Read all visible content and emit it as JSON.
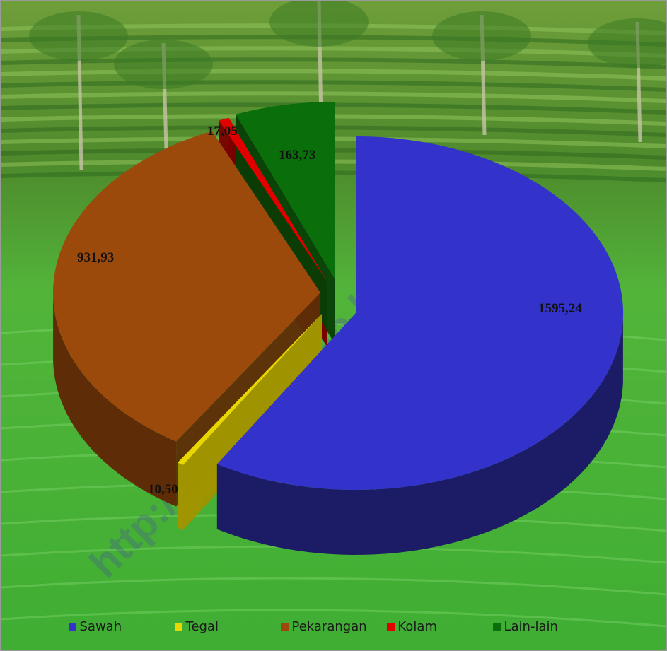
{
  "watermark": "http://tabalongkab.bps.go.id",
  "chart_data": {
    "type": "pie",
    "categories": [
      "Sawah",
      "Tegal",
      "Pekarangan",
      "Kolam",
      "Lain-lain"
    ],
    "values": [
      1595.24,
      10.5,
      931.93,
      17.05,
      163.73
    ],
    "value_labels": [
      "1595,24",
      "10,50",
      "931,93",
      "17,05",
      "163,73"
    ],
    "colors": [
      "#3333cc",
      "#e8d800",
      "#9c4a0c",
      "#e00000",
      "#0a6e0a"
    ],
    "side_colors": [
      "#1c1c66",
      "#a09400",
      "#5e2c06",
      "#7a0000",
      "#063f06"
    ],
    "legend_position": "bottom",
    "exploded": true,
    "three_d": true
  }
}
